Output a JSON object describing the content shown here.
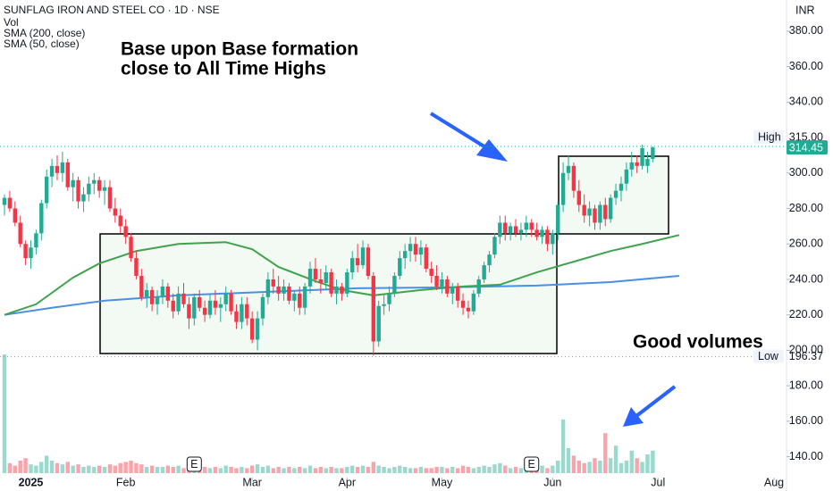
{
  "chart_data": {
    "type": "candlestick",
    "title": "SUNFLAG IRON AND STEEL CO · 1D · NSE",
    "legend": [
      "Vol",
      "SMA (200, close)",
      "SMA (50, close)"
    ],
    "currency": "INR",
    "annotations": [
      "Base upon Base formation",
      "close to All Time Highs",
      "Good volumes"
    ],
    "up_color": "#22ab94",
    "down_color": "#f23645",
    "ylim": [
      128.2,
      397.6
    ],
    "yticks": [
      {
        "value": 380,
        "label": "380.00"
      },
      {
        "value": 360,
        "label": "360.00"
      },
      {
        "value": 340,
        "label": "340.00"
      },
      {
        "value": 300,
        "label": "300.00"
      },
      {
        "value": 280,
        "label": "280.00"
      },
      {
        "value": 260,
        "label": "260.00"
      },
      {
        "value": 240,
        "label": "240.00"
      },
      {
        "value": 220,
        "label": "220.00"
      },
      {
        "value": 200,
        "label": "200.00"
      },
      {
        "value": 180,
        "label": "180.00"
      },
      {
        "value": 160,
        "label": "160.00"
      },
      {
        "value": 140,
        "label": "140.00"
      }
    ],
    "xlim": [
      -0.85,
      146.85
    ],
    "xticks": [
      {
        "value": 5,
        "label": "2025"
      },
      {
        "value": 23,
        "label": "Feb"
      },
      {
        "value": 47,
        "label": "Mar"
      },
      {
        "value": 65,
        "label": "Apr"
      },
      {
        "value": 83,
        "label": "May"
      },
      {
        "value": 104,
        "label": "Jun"
      },
      {
        "value": 124,
        "label": "Jul"
      },
      {
        "value": 146,
        "label": "Aug"
      }
    ],
    "price_lines": [
      {
        "name": "High",
        "value": 315,
        "label": "315.00",
        "color": "#22ab94"
      },
      {
        "name": "Low",
        "value": 196.37,
        "label": "196.37",
        "color": "#9598a1"
      }
    ],
    "events": [
      {
        "x": 36,
        "label": "E"
      },
      {
        "x": 100,
        "label": "E"
      }
    ],
    "candles": [
      [
        282,
        288,
        276,
        286
      ],
      [
        286,
        290,
        278,
        280
      ],
      [
        280,
        284,
        270,
        272
      ],
      [
        272,
        276,
        258,
        260
      ],
      [
        260,
        262,
        248,
        252
      ],
      [
        252,
        262,
        246,
        258
      ],
      [
        258,
        268,
        254,
        266
      ],
      [
        266,
        285,
        262,
        283
      ],
      [
        283,
        302,
        280,
        298
      ],
      [
        298,
        308,
        292,
        304
      ],
      [
        304,
        310,
        296,
        300
      ],
      [
        300,
        312,
        295,
        306
      ],
      [
        306,
        308,
        290,
        292
      ],
      [
        292,
        300,
        284,
        296
      ],
      [
        296,
        298,
        280,
        284
      ],
      [
        284,
        292,
        278,
        288
      ],
      [
        288,
        298,
        284,
        294
      ],
      [
        294,
        300,
        288,
        296
      ],
      [
        296,
        298,
        286,
        290
      ],
      [
        290,
        296,
        282,
        292
      ],
      [
        292,
        296,
        278,
        280
      ],
      [
        280,
        286,
        272,
        276
      ],
      [
        276,
        280,
        266,
        270
      ],
      [
        270,
        274,
        260,
        264
      ],
      [
        264,
        266,
        250,
        252
      ],
      [
        252,
        256,
        240,
        242
      ],
      [
        242,
        246,
        228,
        230
      ],
      [
        230,
        238,
        224,
        234
      ],
      [
        234,
        236,
        222,
        226
      ],
      [
        226,
        234,
        220,
        230
      ],
      [
        230,
        240,
        226,
        236
      ],
      [
        236,
        238,
        224,
        228
      ],
      [
        228,
        232,
        218,
        222
      ],
      [
        222,
        236,
        220,
        232
      ],
      [
        232,
        238,
        224,
        226
      ],
      [
        226,
        230,
        212,
        218
      ],
      [
        218,
        232,
        214,
        230
      ],
      [
        230,
        234,
        222,
        224
      ],
      [
        224,
        228,
        216,
        220
      ],
      [
        220,
        232,
        218,
        228
      ],
      [
        228,
        234,
        220,
        224
      ],
      [
        224,
        230,
        216,
        226
      ],
      [
        226,
        236,
        222,
        232
      ],
      [
        232,
        234,
        220,
        222
      ],
      [
        222,
        226,
        212,
        216
      ],
      [
        216,
        230,
        212,
        226
      ],
      [
        226,
        230,
        214,
        218
      ],
      [
        218,
        222,
        204,
        206
      ],
      [
        206,
        222,
        200,
        218
      ],
      [
        218,
        232,
        214,
        230
      ],
      [
        230,
        244,
        226,
        240
      ],
      [
        240,
        246,
        232,
        236
      ],
      [
        236,
        242,
        228,
        232
      ],
      [
        232,
        240,
        228,
        236
      ],
      [
        236,
        238,
        226,
        228
      ],
      [
        228,
        234,
        222,
        232
      ],
      [
        232,
        236,
        220,
        224
      ],
      [
        224,
        238,
        220,
        236
      ],
      [
        236,
        250,
        232,
        246
      ],
      [
        246,
        252,
        238,
        240
      ],
      [
        240,
        246,
        232,
        238
      ],
      [
        238,
        248,
        234,
        244
      ],
      [
        244,
        246,
        230,
        232
      ],
      [
        232,
        240,
        226,
        236
      ],
      [
        236,
        238,
        228,
        232
      ],
      [
        232,
        246,
        230,
        244
      ],
      [
        244,
        256,
        240,
        252
      ],
      [
        252,
        260,
        244,
        248
      ],
      [
        248,
        262,
        246,
        258
      ],
      [
        258,
        260,
        240,
        242
      ],
      [
        242,
        244,
        197,
        205
      ],
      [
        205,
        228,
        202,
        225
      ],
      [
        225,
        232,
        220,
        226
      ],
      [
        226,
        236,
        222,
        232
      ],
      [
        232,
        244,
        230,
        242
      ],
      [
        242,
        256,
        240,
        252
      ],
      [
        252,
        260,
        246,
        256
      ],
      [
        256,
        264,
        250,
        260
      ],
      [
        260,
        264,
        250,
        254
      ],
      [
        254,
        262,
        248,
        258
      ],
      [
        258,
        260,
        244,
        246
      ],
      [
        246,
        250,
        238,
        242
      ],
      [
        242,
        248,
        234,
        236
      ],
      [
        236,
        244,
        232,
        240
      ],
      [
        240,
        242,
        230,
        232
      ],
      [
        232,
        238,
        226,
        236
      ],
      [
        236,
        238,
        224,
        228
      ],
      [
        228,
        232,
        220,
        224
      ],
      [
        224,
        228,
        218,
        222
      ],
      [
        222,
        234,
        220,
        232
      ],
      [
        232,
        242,
        230,
        240
      ],
      [
        240,
        250,
        238,
        248
      ],
      [
        248,
        256,
        244,
        254
      ],
      [
        254,
        266,
        252,
        264
      ],
      [
        264,
        276,
        260,
        272
      ],
      [
        272,
        276,
        262,
        266
      ],
      [
        266,
        272,
        262,
        270
      ],
      [
        270,
        274,
        264,
        266
      ],
      [
        266,
        272,
        262,
        268
      ],
      [
        268,
        276,
        264,
        272
      ],
      [
        272,
        274,
        264,
        268
      ],
      [
        268,
        272,
        262,
        264
      ],
      [
        264,
        270,
        260,
        268
      ],
      [
        268,
        270,
        256,
        260
      ],
      [
        260,
        268,
        254,
        266
      ],
      [
        266,
        284,
        262,
        282
      ],
      [
        282,
        306,
        278,
        300
      ],
      [
        300,
        310,
        296,
        304
      ],
      [
        304,
        306,
        286,
        290
      ],
      [
        290,
        296,
        278,
        282
      ],
      [
        282,
        288,
        272,
        276
      ],
      [
        276,
        284,
        270,
        280
      ],
      [
        280,
        282,
        268,
        272
      ],
      [
        272,
        284,
        268,
        282
      ],
      [
        282,
        286,
        270,
        274
      ],
      [
        274,
        288,
        272,
        286
      ],
      [
        286,
        294,
        282,
        290
      ],
      [
        290,
        298,
        284,
        294
      ],
      [
        294,
        306,
        290,
        302
      ],
      [
        302,
        312,
        298,
        306
      ],
      [
        306,
        310,
        300,
        304
      ],
      [
        304,
        316,
        302,
        314
      ],
      [
        304,
        312,
        300,
        308
      ],
      [
        308,
        315,
        306,
        314.45
      ]
    ],
    "volume_ylim": [
      0,
      100
    ],
    "volume": [
      95,
      8,
      6,
      10,
      12,
      7,
      6,
      9,
      14,
      10,
      8,
      7,
      9,
      6,
      7,
      5,
      6,
      5,
      6,
      5,
      7,
      6,
      8,
      9,
      10,
      8,
      7,
      5,
      6,
      5,
      5,
      6,
      5,
      6,
      4,
      6,
      5,
      4,
      5,
      4,
      5,
      4,
      6,
      5,
      4,
      5,
      4,
      6,
      7,
      5,
      6,
      4,
      5,
      4,
      5,
      4,
      5,
      4,
      6,
      4,
      5,
      4,
      5,
      4,
      4,
      5,
      6,
      5,
      6,
      5,
      9,
      6,
      5,
      4,
      5,
      6,
      5,
      4,
      4,
      5,
      4,
      4,
      5,
      5,
      4,
      5,
      4,
      6,
      5,
      4,
      5,
      6,
      5,
      7,
      8,
      6,
      4,
      5,
      4,
      5,
      4,
      5,
      6,
      4,
      6,
      10,
      43,
      20,
      14,
      10,
      8,
      9,
      12,
      10,
      32,
      12,
      22,
      8,
      10,
      18,
      12,
      9,
      15,
      18
    ],
    "series": [
      {
        "name": "SMA (200, close)",
        "color": "#4a8fe7",
        "x": [
          0,
          9,
          19,
          33,
          50,
          67,
          84,
          101,
          115,
          128
        ],
        "values": [
          220,
          224,
          228,
          231,
          233,
          235,
          235.5,
          236.5,
          238.5,
          242
        ]
      },
      {
        "name": "SMA (50, close)",
        "color": "#3fa34d",
        "x": [
          0,
          6,
          13,
          18,
          25,
          33,
          42,
          47,
          52,
          59,
          64,
          70,
          79,
          87,
          94,
          101,
          108,
          115,
          121,
          128
        ],
        "values": [
          220,
          226,
          241,
          249,
          256,
          260,
          261,
          257,
          247,
          239,
          234,
          231,
          234,
          236,
          237,
          244,
          250,
          256,
          260,
          265
        ]
      }
    ]
  }
}
